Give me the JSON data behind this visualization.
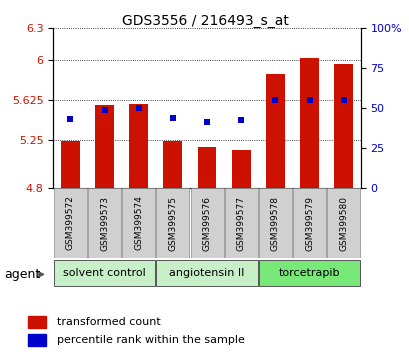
{
  "title": "GDS3556 / 216493_s_at",
  "samples": [
    "GSM399572",
    "GSM399573",
    "GSM399574",
    "GSM399575",
    "GSM399576",
    "GSM399577",
    "GSM399578",
    "GSM399579",
    "GSM399580"
  ],
  "bar_values": [
    5.24,
    5.58,
    5.59,
    5.24,
    5.18,
    5.15,
    5.87,
    6.02,
    5.96
  ],
  "bar_bottom": 4.8,
  "dot_values_left": [
    5.45,
    5.53,
    5.55,
    5.46,
    5.42,
    5.44,
    5.625,
    5.625,
    5.625
  ],
  "ylim_left": [
    4.8,
    6.3
  ],
  "ylim_right": [
    0,
    100
  ],
  "yticks_left": [
    4.8,
    5.25,
    5.625,
    6.0,
    6.3
  ],
  "ytick_labels_left": [
    "4.8",
    "5.25",
    "5.625",
    "6",
    "6.3"
  ],
  "yticks_right": [
    0,
    25,
    50,
    75,
    100
  ],
  "ytick_labels_right": [
    "0",
    "25",
    "50",
    "75",
    "100%"
  ],
  "groups": [
    {
      "label": "solvent control",
      "start": 0,
      "end": 3,
      "color": "#c8f0c8"
    },
    {
      "label": "angiotensin II",
      "start": 3,
      "end": 6,
      "color": "#c8f0c8"
    },
    {
      "label": "torcetrapib",
      "start": 6,
      "end": 9,
      "color": "#78e878"
    }
  ],
  "bar_color": "#cc1100",
  "dot_color": "#0000cc",
  "bar_width": 0.55,
  "agent_label": "agent",
  "legend_bar_label": "transformed count",
  "legend_dot_label": "percentile rank within the sample",
  "left_tick_color": "#cc1100",
  "right_tick_color": "#0000cc",
  "sample_box_color": "#d0d0d0",
  "sample_box_edge": "#888888"
}
